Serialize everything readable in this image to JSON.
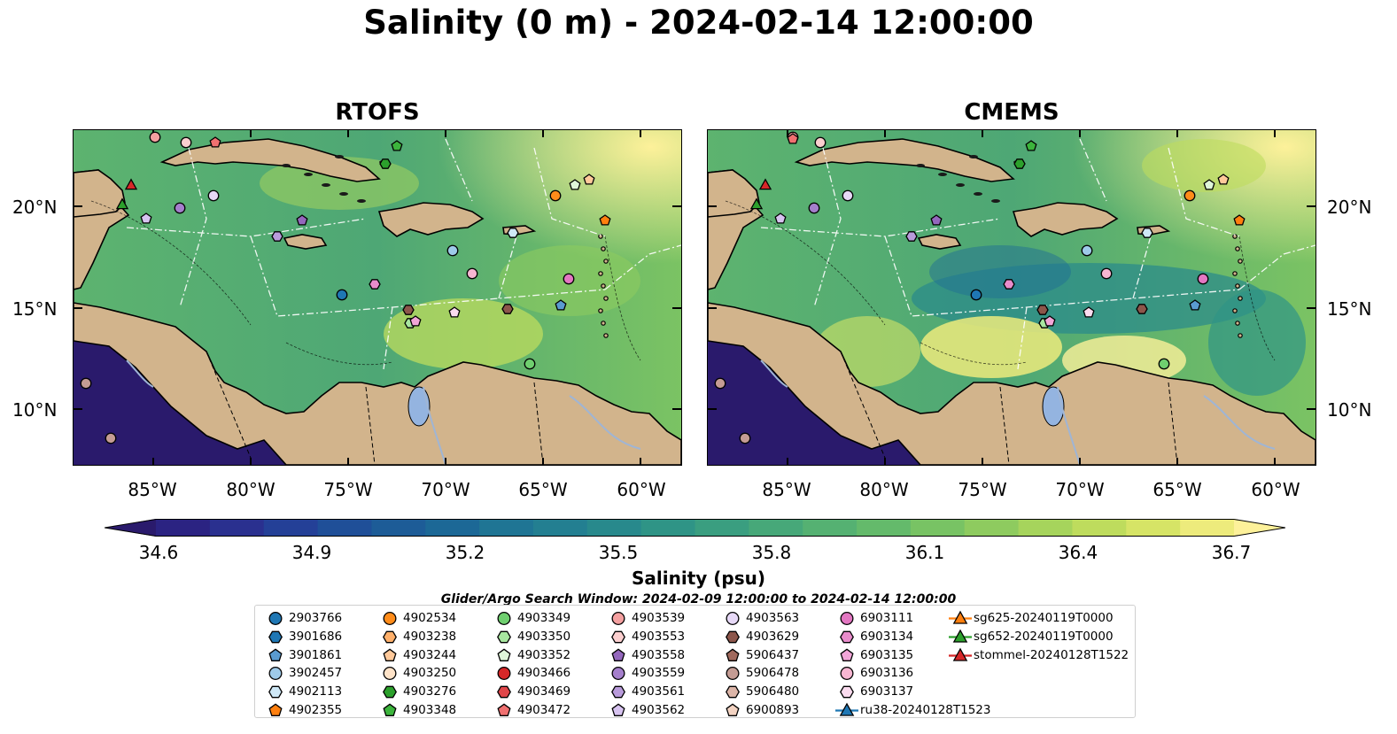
{
  "title": "Salinity (0 m) - 2024-02-14 12:00:00",
  "panels": [
    {
      "title": "RTOFS"
    },
    {
      "title": "CMEMS"
    }
  ],
  "lat_labels": [
    "20°N",
    "15°N",
    "10°N"
  ],
  "lon_labels": [
    "85°W",
    "80°W",
    "75°W",
    "70°W",
    "65°W",
    "60°W"
  ],
  "colorbar": {
    "label": "Salinity (psu)",
    "ticks": [
      "34.6",
      "34.9",
      "35.2",
      "35.5",
      "35.8",
      "36.1",
      "36.4",
      "36.7"
    ],
    "colors": [
      "#2a1a6c",
      "#2b2382",
      "#2a308f",
      "#244097",
      "#1f4f98",
      "#1d5c97",
      "#1c6896",
      "#1f7594",
      "#237f91",
      "#28898c",
      "#2f9486",
      "#3a9e80",
      "#47a879",
      "#55b172",
      "#64ba6b",
      "#78c364",
      "#8ecb5f",
      "#a6d45c",
      "#bedc5d",
      "#d6e466",
      "#edeb7c",
      "#fdf19a"
    ]
  },
  "search_window": "Glider/Argo Search Window: 2024-02-09 12:00:00 to 2024-02-14 12:00:00",
  "colors": {
    "land": "#d2b48c",
    "lake": "#94b4e0",
    "river": "#9fb5d5",
    "low_salinity": "#2a1a6c"
  },
  "legend": [
    {
      "label": "2903766",
      "marker": "circle",
      "color": "#1f77b4"
    },
    {
      "label": "3901686",
      "marker": "hexagon",
      "color": "#1f77b4"
    },
    {
      "label": "3901861",
      "marker": "pentagon",
      "color": "#5a9bd0"
    },
    {
      "label": "3902457",
      "marker": "circle",
      "color": "#9ecae9"
    },
    {
      "label": "4902113",
      "marker": "hexagon",
      "color": "#cfe8f6"
    },
    {
      "label": "4902355",
      "marker": "pentagon",
      "color": "#ff7f0e"
    },
    {
      "label": "4902534",
      "marker": "circle",
      "color": "#ff8c1a"
    },
    {
      "label": "4903238",
      "marker": "hexagon",
      "color": "#ffb06b"
    },
    {
      "label": "4903244",
      "marker": "pentagon",
      "color": "#ffc99a"
    },
    {
      "label": "4903250",
      "marker": "circle",
      "color": "#ffe3c8"
    },
    {
      "label": "4903276",
      "marker": "hexagon",
      "color": "#2ca02c"
    },
    {
      "label": "4903348",
      "marker": "pentagon",
      "color": "#3cb43c"
    },
    {
      "label": "4903349",
      "marker": "circle",
      "color": "#6fcf6f"
    },
    {
      "label": "4903350",
      "marker": "hexagon",
      "color": "#a8e6a0"
    },
    {
      "label": "4903352",
      "marker": "pentagon",
      "color": "#dff6d9"
    },
    {
      "label": "4903466",
      "marker": "circle",
      "color": "#d62728"
    },
    {
      "label": "4903469",
      "marker": "hexagon",
      "color": "#e0474a"
    },
    {
      "label": "4903472",
      "marker": "pentagon",
      "color": "#f07070"
    },
    {
      "label": "4903539",
      "marker": "circle",
      "color": "#f4a0a0"
    },
    {
      "label": "4903553",
      "marker": "hexagon",
      "color": "#fbcfcf"
    },
    {
      "label": "4903558",
      "marker": "pentagon",
      "color": "#9467bd"
    },
    {
      "label": "4903559",
      "marker": "circle",
      "color": "#a57fcc"
    },
    {
      "label": "4903561",
      "marker": "hexagon",
      "color": "#b99bdb"
    },
    {
      "label": "4903562",
      "marker": "pentagon",
      "color": "#d7c3f0"
    },
    {
      "label": "4903563",
      "marker": "circle",
      "color": "#e7d9f7"
    },
    {
      "label": "4903629",
      "marker": "hexagon",
      "color": "#8c564b"
    },
    {
      "label": "5906437",
      "marker": "pentagon",
      "color": "#a0695d"
    },
    {
      "label": "5906478",
      "marker": "circle",
      "color": "#c49c94"
    },
    {
      "label": "5906480",
      "marker": "hexagon",
      "color": "#dcb5a8"
    },
    {
      "label": "6900893",
      "marker": "pentagon",
      "color": "#f3d3c2"
    },
    {
      "label": "6903111",
      "marker": "circle",
      "color": "#e377c2"
    },
    {
      "label": "6903134",
      "marker": "hexagon",
      "color": "#e88ccb"
    },
    {
      "label": "6903135",
      "marker": "pentagon",
      "color": "#f2a6d8"
    },
    {
      "label": "6903136",
      "marker": "circle",
      "color": "#f7b6d2"
    },
    {
      "label": "6903137",
      "marker": "hexagon",
      "color": "#fbdcef"
    },
    {
      "label": "ru38-20240128T1523",
      "marker": "triangle-line",
      "color": "#1f77b4"
    },
    {
      "label": "sg625-20240119T0000",
      "marker": "triangle-line",
      "color": "#ff7f0e"
    },
    {
      "label": "sg652-20240119T0000",
      "marker": "triangle-line",
      "color": "#2ca02c"
    },
    {
      "label": "stommel-20240128T1522",
      "marker": "triangle-line",
      "color": "#d62728"
    }
  ]
}
